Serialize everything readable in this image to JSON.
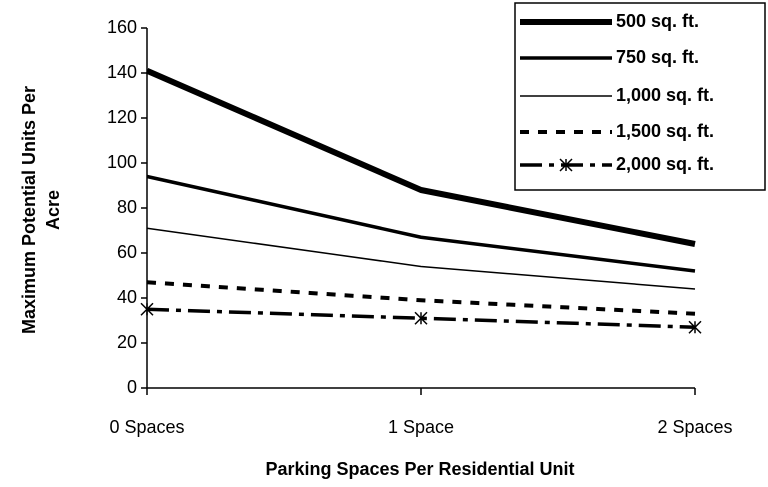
{
  "chart_data": {
    "type": "line",
    "x_label": "Parking Spaces Per Residential Unit",
    "y_label": [
      "Maximum Potential Units Per",
      "Acre"
    ],
    "categories": [
      "0 Spaces",
      "1 Space",
      "2 Spaces"
    ],
    "ylim": [
      0,
      160
    ],
    "yticks": [
      0,
      20,
      40,
      60,
      80,
      100,
      120,
      140,
      160
    ],
    "legend": "top-right",
    "series": [
      {
        "name": "500 sq. ft.",
        "color": "#000000",
        "width": 6,
        "dash": "none",
        "values": [
          141,
          88,
          64
        ]
      },
      {
        "name": "750 sq. ft.",
        "color": "#000000",
        "width": 3.5,
        "dash": "none",
        "values": [
          94,
          67,
          52
        ]
      },
      {
        "name": "1,000 sq. ft.",
        "color": "#000000",
        "width": 1.5,
        "dash": "none",
        "values": [
          71,
          54,
          44
        ]
      },
      {
        "name": "1,500 sq. ft.",
        "color": "#000000",
        "width": 4,
        "dash": "9 9",
        "values": [
          47,
          39,
          33
        ]
      },
      {
        "name": "2,000 sq. ft.",
        "color": "#000000",
        "width": 3.5,
        "dash": "22 7 5 7",
        "marker": "asterisk",
        "values": [
          35,
          31,
          27
        ]
      }
    ]
  }
}
